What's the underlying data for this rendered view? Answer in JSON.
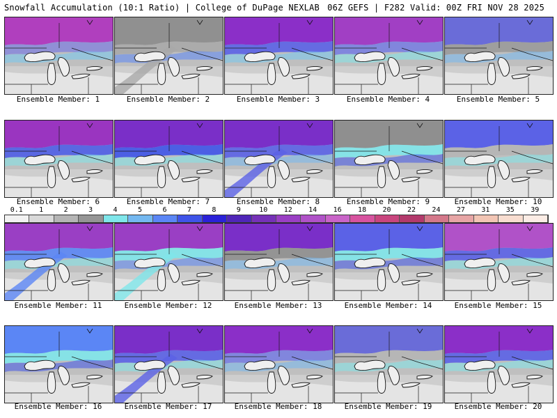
{
  "header": {
    "left_title": "Snowfall Accumulation (10:1 Ratio) | College of DuPage NEXLAB",
    "right_title": "06Z GEFS | F282 Valid: 00Z FRI NOV 28 2025"
  },
  "colorbar": {
    "ticks": [
      "0.1",
      "1",
      "2",
      "3",
      "4",
      "5",
      "6",
      "7",
      "8",
      "9",
      "10",
      "12",
      "14",
      "16",
      "18",
      "20",
      "22",
      "24",
      "27",
      "31",
      "35",
      "39"
    ],
    "colors": [
      "#f2f2f2",
      "#d9d9d9",
      "#b5b5b5",
      "#959595",
      "#7fe6ea",
      "#74b8f0",
      "#5b86f5",
      "#3f54e8",
      "#2b22d8",
      "#5026b8",
      "#7631b8",
      "#9a3fc4",
      "#b052c8",
      "#c964c8",
      "#d7539f",
      "#c9457e",
      "#b33a6c",
      "#d4788a",
      "#e7a5a5",
      "#f2c5b4",
      "#f8ddd0",
      "#fbece5"
    ]
  },
  "panels": [
    {
      "label": "Ensemble Member: 1"
    },
    {
      "label": "Ensemble Member: 2"
    },
    {
      "label": "Ensemble Member: 3"
    },
    {
      "label": "Ensemble Member: 4"
    },
    {
      "label": "Ensemble Member: 5"
    },
    {
      "label": "Ensemble Member: 6"
    },
    {
      "label": "Ensemble Member: 7"
    },
    {
      "label": "Ensemble Member: 8"
    },
    {
      "label": "Ensemble Member: 9"
    },
    {
      "label": "Ensemble Member: 10"
    },
    {
      "label": "Ensemble Member: 11"
    },
    {
      "label": "Ensemble Member: 12"
    },
    {
      "label": "Ensemble Member: 13"
    },
    {
      "label": "Ensemble Member: 14"
    },
    {
      "label": "Ensemble Member: 15"
    },
    {
      "label": "Ensemble Member: 16"
    },
    {
      "label": "Ensemble Member: 17"
    },
    {
      "label": "Ensemble Member: 18"
    },
    {
      "label": "Ensemble Member: 19"
    },
    {
      "label": "Ensemble Member: 20"
    }
  ]
}
